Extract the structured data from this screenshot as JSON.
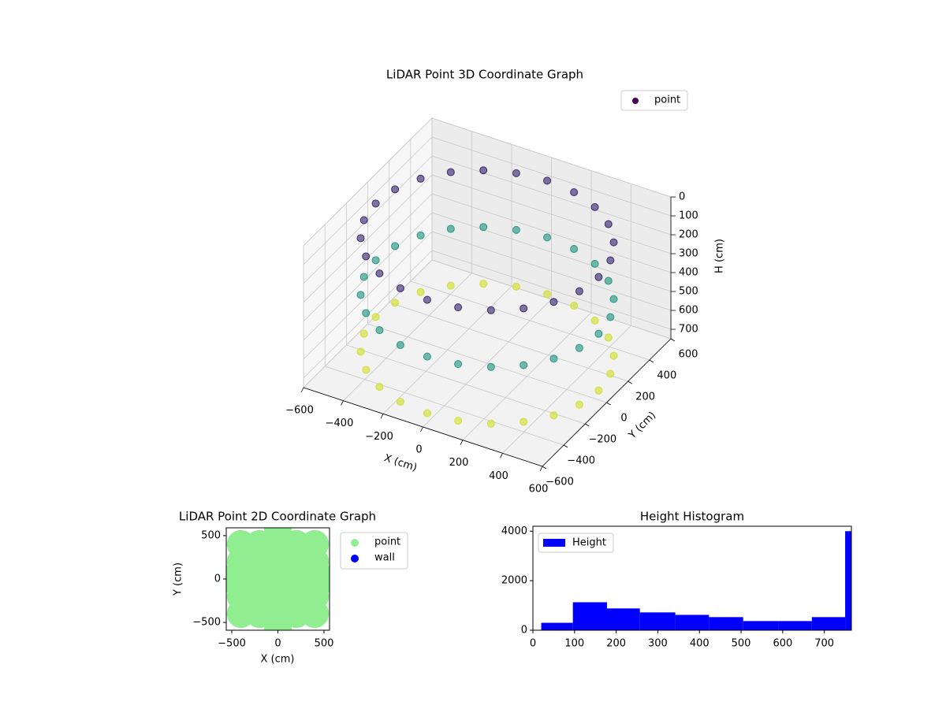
{
  "chart_data": [
    {
      "type": "scatter3d",
      "title": "LiDAR Point 3D Coordinate Graph",
      "x_label": "X (cm)",
      "y_label": "Y (cm)",
      "z_label": "H (cm)",
      "xlim": [
        -600,
        600
      ],
      "ylim": [
        -600,
        600
      ],
      "zlim": [
        0,
        750
      ],
      "z_inverted": true,
      "colormap": "viridis",
      "legend": "upper right",
      "xticks": [
        {
          "value": -600,
          "label": "−600"
        },
        {
          "value": -400,
          "label": "−400"
        },
        {
          "value": -200,
          "label": "−200"
        },
        0,
        200,
        400,
        600
      ],
      "yticks": [
        {
          "value": -600,
          "label": "−600"
        },
        {
          "value": -400,
          "label": "−400"
        },
        {
          "value": -200,
          "label": "−200"
        },
        0,
        200,
        400,
        600
      ],
      "zticks": [
        0,
        100,
        200,
        300,
        400,
        500,
        600,
        700
      ],
      "series": [
        {
          "name": "point",
          "color": "#440154",
          "x": [
            560,
            541,
            485,
            396,
            280,
            145,
            0,
            -145,
            -280,
            -396,
            -485,
            -541,
            -560,
            -541,
            -485,
            -396,
            -280,
            -145,
            0,
            145,
            280,
            396,
            485,
            541,
            560,
            541,
            485,
            396,
            280,
            145,
            0,
            -145,
            -280,
            -396,
            -485,
            -541,
            -560,
            -541,
            -485,
            -396,
            -280,
            -145,
            0,
            145,
            280,
            396,
            485,
            541,
            560,
            541,
            485,
            396,
            280,
            145,
            0,
            -145,
            -280,
            -396,
            -485,
            -541,
            -560,
            -541,
            -485,
            -396,
            -280,
            -145,
            0,
            145,
            280,
            396,
            485,
            541
          ],
          "y": [
            0,
            145,
            280,
            396,
            485,
            541,
            560,
            541,
            485,
            396,
            280,
            145,
            0,
            -145,
            -280,
            -396,
            -485,
            -541,
            -560,
            -541,
            -485,
            -396,
            -280,
            -145,
            0,
            145,
            280,
            396,
            485,
            541,
            560,
            541,
            485,
            396,
            280,
            145,
            0,
            -145,
            -280,
            -396,
            -485,
            -541,
            -560,
            -541,
            -485,
            -396,
            -280,
            -145,
            0,
            145,
            280,
            396,
            485,
            541,
            560,
            541,
            485,
            396,
            280,
            145,
            0,
            -145,
            -280,
            -396,
            -485,
            -541,
            -560,
            -541,
            -485,
            -396,
            -280,
            -145
          ],
          "z": [
            100,
            100,
            100,
            100,
            100,
            100,
            100,
            100,
            100,
            100,
            100,
            100,
            100,
            100,
            100,
            100,
            100,
            100,
            100,
            100,
            100,
            100,
            100,
            100,
            400,
            400,
            400,
            400,
            400,
            400,
            400,
            400,
            400,
            400,
            400,
            400,
            400,
            400,
            400,
            400,
            400,
            400,
            400,
            400,
            400,
            400,
            400,
            400,
            700,
            700,
            700,
            700,
            700,
            700,
            700,
            700,
            700,
            700,
            700,
            700,
            700,
            700,
            700,
            700,
            700,
            700,
            700,
            700,
            700,
            700,
            700,
            700
          ]
        }
      ]
    },
    {
      "type": "scatter",
      "title": "LiDAR Point 2D Coordinate Graph",
      "x_label": "X (cm)",
      "y_label": "Y (cm)",
      "xlim": [
        -560,
        560
      ],
      "ylim": [
        -590,
        590
      ],
      "legend": "outside right",
      "xticks": [
        {
          "value": -500,
          "label": "−500"
        },
        0,
        500
      ],
      "yticks": [
        {
          "value": -500,
          "label": "−500"
        },
        0,
        500
      ],
      "series": [
        {
          "name": "point",
          "color": "#90ee90",
          "x": [
            0,
            0,
            0,
            0,
            0,
            0,
            0,
            -200,
            -200,
            -200,
            -200,
            -200,
            200,
            200,
            200,
            200,
            200,
            -400,
            -400,
            -400,
            -400,
            -400,
            400,
            400,
            400,
            400,
            400,
            -600,
            600
          ],
          "y": [
            -600,
            -400,
            -200,
            0,
            200,
            400,
            600,
            -400,
            -200,
            0,
            200,
            400,
            -400,
            -200,
            0,
            200,
            400,
            -400,
            -200,
            0,
            200,
            400,
            -400,
            -200,
            0,
            200,
            400,
            0,
            0
          ]
        },
        {
          "name": "wall",
          "color": "#0000ff",
          "x": [],
          "y": []
        }
      ]
    },
    {
      "type": "histogram",
      "title": "Height Histogram",
      "color": "#0000ff",
      "legend": "upper left",
      "series_name": "Height",
      "bins": [
        20,
        96,
        178,
        257,
        342,
        423,
        505,
        590,
        670,
        750,
        765
      ],
      "counts": [
        300,
        1130,
        880,
        720,
        620,
        530,
        370,
        370,
        530,
        4000
      ],
      "xlim": [
        0,
        765
      ],
      "ylim": [
        0,
        4200
      ],
      "xticks": [
        0,
        100,
        200,
        300,
        400,
        500,
        600,
        700
      ],
      "yticks": [
        0,
        2000,
        4000
      ]
    }
  ]
}
